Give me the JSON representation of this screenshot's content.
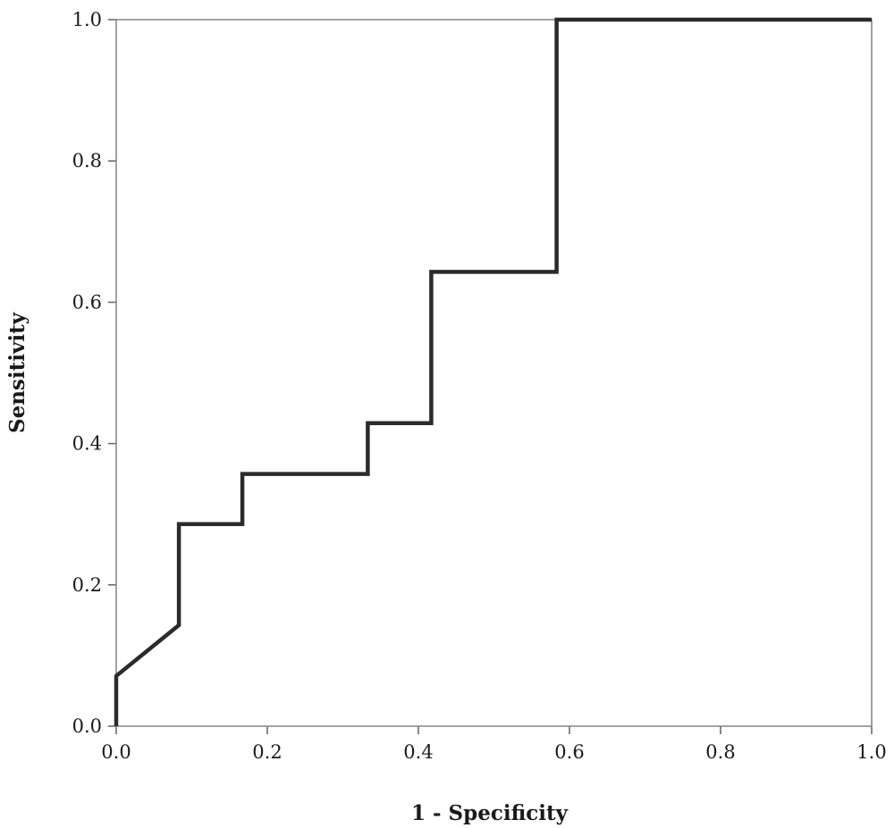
{
  "chart_data": {
    "type": "line",
    "title": "",
    "xlabel": "1 - Specificity",
    "ylabel": "Sensitivity",
    "xlim": [
      0.0,
      1.0
    ],
    "ylim": [
      0.0,
      1.0
    ],
    "x_ticks": [
      "0.0",
      "0.2",
      "0.4",
      "0.6",
      "0.8",
      "1.0"
    ],
    "y_ticks": [
      "0.0",
      "0.2",
      "0.4",
      "0.6",
      "0.8",
      "1.0"
    ],
    "grid": false,
    "legend": "none",
    "line_color": "#2b2b2b",
    "series": [
      {
        "x": [
          0.0,
          0.0,
          0.083,
          0.083,
          0.167,
          0.167,
          0.333,
          0.333,
          0.417,
          0.417,
          0.583,
          0.583,
          1.0
        ],
        "y": [
          0.0,
          0.071,
          0.143,
          0.286,
          0.286,
          0.357,
          0.357,
          0.429,
          0.429,
          0.643,
          0.643,
          1.0,
          1.0
        ]
      }
    ]
  }
}
